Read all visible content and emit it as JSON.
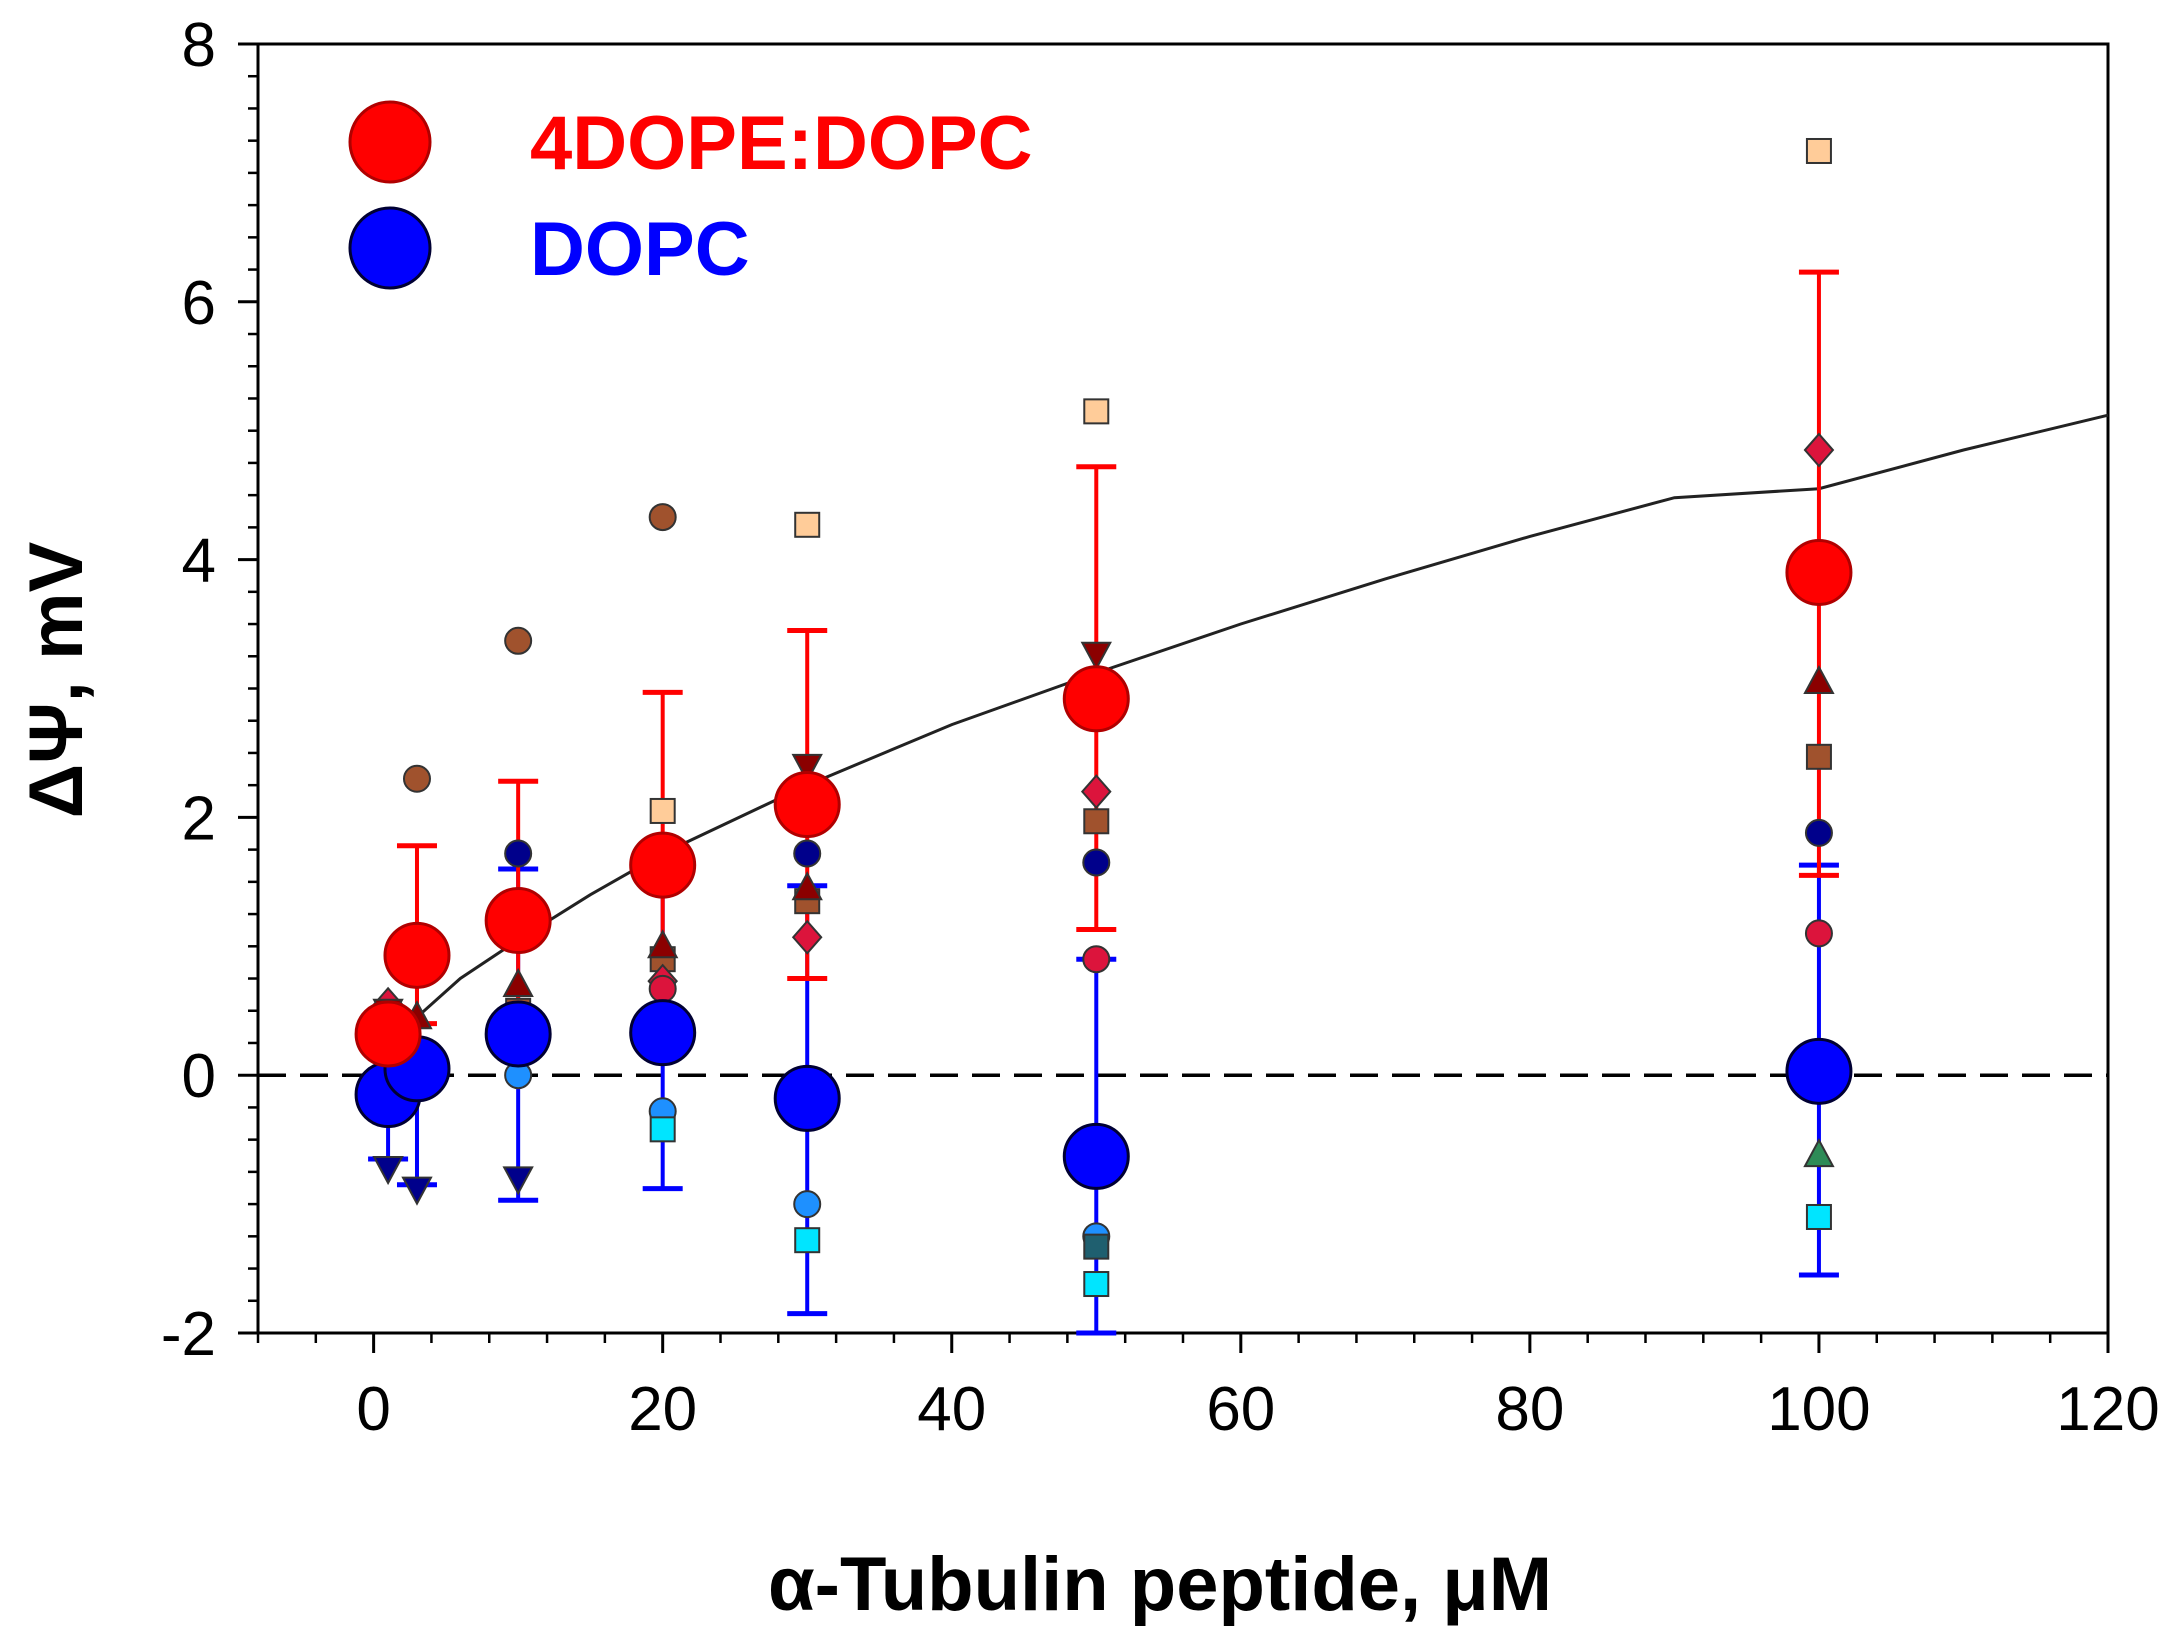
{
  "chart_data": {
    "type": "scatter",
    "xlabel": "α-Tubulin peptide, μM",
    "ylabel": "ΔΨ, mV",
    "xlim": [
      -8,
      120
    ],
    "ylim": [
      -2,
      8
    ],
    "xticks": [
      0,
      20,
      40,
      60,
      80,
      100,
      120
    ],
    "yticks": [
      -2,
      0,
      2,
      4,
      6,
      8
    ],
    "xtick_labels": [
      "0",
      "20",
      "40",
      "60",
      "80",
      "100",
      "120"
    ],
    "ytick_labels": [
      "-2",
      "0",
      "2",
      "4",
      "6",
      "8"
    ],
    "legend_position": "top-left",
    "reference_line": {
      "y": 0,
      "style": "dashed",
      "color": "#000000"
    },
    "fit_curve": {
      "name": "fit",
      "color": "#222222",
      "x": [
        3,
        6,
        10,
        15,
        20,
        30,
        40,
        50,
        60,
        70,
        80,
        90,
        100,
        110,
        120
      ],
      "y": [
        0.45,
        0.75,
        1.05,
        1.4,
        1.72,
        2.25,
        2.72,
        3.12,
        3.5,
        3.85,
        4.18,
        4.48,
        4.55,
        4.85,
        5.12
      ]
    },
    "series": [
      {
        "name": "4DOPE:DOPC",
        "legend_label": "4DOPE:DOPC",
        "color": "#ff0000",
        "stroke": "#b00000",
        "label_color": "#ff0000",
        "x": [
          1,
          3,
          10,
          20,
          30,
          50,
          100
        ],
        "y": [
          0.32,
          0.93,
          1.2,
          1.63,
          2.1,
          2.92,
          3.9
        ],
        "err_high": [
          0.4,
          1.78,
          2.28,
          2.97,
          3.45,
          4.72,
          6.23
        ],
        "err_low": [
          0.25,
          0.4,
          0.5,
          0.5,
          0.75,
          1.13,
          1.55
        ]
      },
      {
        "name": "DOPC",
        "legend_label": "DOPC",
        "color": "#0000ff",
        "stroke": "#000033",
        "label_color": "#0000ff",
        "x": [
          1,
          3,
          10,
          20,
          30,
          50,
          100
        ],
        "y": [
          -0.15,
          0.05,
          0.32,
          0.33,
          -0.18,
          -0.63,
          0.03
        ],
        "err_high": [
          0.35,
          1.05,
          1.6,
          1.55,
          1.47,
          0.9,
          1.63
        ],
        "err_low": [
          -0.65,
          -0.85,
          -0.97,
          -0.88,
          -1.85,
          -2.0,
          -1.55
        ]
      }
    ],
    "individual_points": [
      {
        "set": "4DOPE:DOPC",
        "marker": "circle",
        "color": "#a0522d",
        "points": [
          [
            3,
            2.3
          ],
          [
            10,
            3.37
          ],
          [
            20,
            4.33
          ]
        ]
      },
      {
        "set": "4DOPE:DOPC",
        "marker": "square",
        "color": "#ffcc99",
        "points": [
          [
            20,
            2.05
          ],
          [
            30,
            4.27
          ],
          [
            50,
            5.15
          ],
          [
            100,
            7.17
          ]
        ]
      },
      {
        "set": "4DOPE:DOPC",
        "marker": "square",
        "color": "#a0522d",
        "points": [
          [
            1,
            -0.1
          ],
          [
            3,
            0.1
          ],
          [
            10,
            0.5
          ],
          [
            20,
            0.9
          ],
          [
            30,
            1.35
          ],
          [
            50,
            1.97
          ],
          [
            100,
            2.47
          ]
        ]
      },
      {
        "set": "4DOPE:DOPC",
        "marker": "diamond",
        "color": "#dc143c",
        "points": [
          [
            1,
            0.55
          ],
          [
            20,
            0.73
          ],
          [
            30,
            1.07
          ],
          [
            50,
            2.2
          ],
          [
            100,
            4.85
          ]
        ]
      },
      {
        "set": "4DOPE:DOPC",
        "marker": "circle",
        "color": "#dc143c",
        "points": [
          [
            3,
            0.78
          ],
          [
            20,
            0.67
          ],
          [
            50,
            0.9
          ],
          [
            100,
            1.1
          ]
        ]
      },
      {
        "set": "4DOPE:DOPC",
        "marker": "triangle-up",
        "color": "#8b0000",
        "points": [
          [
            3,
            0.45
          ],
          [
            10,
            0.7
          ],
          [
            20,
            1.0
          ],
          [
            30,
            1.45
          ],
          [
            100,
            3.05
          ]
        ]
      },
      {
        "set": "4DOPE:DOPC",
        "marker": "triangle-down",
        "color": "#8b0000",
        "points": [
          [
            1,
            0.5
          ],
          [
            10,
            1.25
          ],
          [
            30,
            2.4
          ],
          [
            50,
            3.27
          ]
        ]
      },
      {
        "set": "DOPC",
        "marker": "circle",
        "color": "#00008b",
        "points": [
          [
            3,
            1.05
          ],
          [
            10,
            1.72
          ],
          [
            20,
            1.72
          ],
          [
            30,
            1.72
          ],
          [
            50,
            1.65
          ],
          [
            100,
            1.88
          ]
        ]
      },
      {
        "set": "DOPC",
        "marker": "circle",
        "color": "#1e90ff",
        "points": [
          [
            1,
            0.1
          ],
          [
            3,
            0.03
          ],
          [
            10,
            0.0
          ],
          [
            20,
            -0.28
          ],
          [
            30,
            -1.0
          ],
          [
            50,
            -1.25
          ]
        ]
      },
      {
        "set": "DOPC",
        "marker": "square",
        "color": "#00e5ff",
        "points": [
          [
            20,
            -0.42
          ],
          [
            30,
            -1.28
          ],
          [
            50,
            -1.62
          ],
          [
            100,
            -1.1
          ]
        ]
      },
      {
        "set": "DOPC",
        "marker": "square",
        "color": "#1f5f6f",
        "points": [
          [
            50,
            -1.33
          ]
        ]
      },
      {
        "set": "DOPC",
        "marker": "triangle-up",
        "color": "#2e8b57",
        "points": [
          [
            100,
            -0.62
          ]
        ]
      },
      {
        "set": "DOPC",
        "marker": "triangle-down",
        "color": "#00008b",
        "points": [
          [
            1,
            -0.72
          ],
          [
            3,
            -0.88
          ],
          [
            10,
            -0.8
          ]
        ]
      }
    ]
  }
}
